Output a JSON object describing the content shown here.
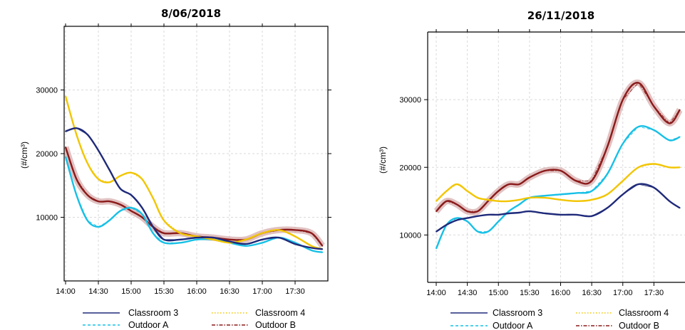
{
  "colors": {
    "Classroom 3": "#1f2a7a",
    "Classroom 4": "#f2c500",
    "Outdoor A": "#17c0e6",
    "Outdoor B": "#8b1a1a"
  },
  "chart_data": [
    {
      "type": "line",
      "title": "8/06/2018",
      "ylabel": "(#/cm³)",
      "xlabel": "",
      "x_ticks": [
        "14:00",
        "14:30",
        "15:00",
        "15:30",
        "16:00",
        "16:30",
        "17:00",
        "17:30"
      ],
      "xlim": [
        "14:00",
        "18:00"
      ],
      "y_ticks": [
        10000,
        20000,
        30000
      ],
      "ylim": [
        0,
        40000
      ],
      "grid": true,
      "legend": "bottom",
      "series": [
        {
          "name": "Classroom 3",
          "style": "solid",
          "x": [
            "14:00",
            "14:10",
            "14:20",
            "14:30",
            "14:40",
            "14:50",
            "15:00",
            "15:10",
            "15:20",
            "15:30",
            "15:45",
            "16:00",
            "16:15",
            "16:30",
            "16:45",
            "17:00",
            "17:15",
            "17:30",
            "17:45",
            "17:55"
          ],
          "values": [
            23500,
            24000,
            23000,
            20500,
            17500,
            14500,
            13500,
            11500,
            8500,
            6500,
            6500,
            6800,
            6800,
            6200,
            5800,
            6500,
            6800,
            5800,
            5200,
            5000
          ]
        },
        {
          "name": "Classroom 4",
          "style": "dotted",
          "x": [
            "14:00",
            "14:10",
            "14:20",
            "14:30",
            "14:40",
            "14:50",
            "15:00",
            "15:10",
            "15:20",
            "15:30",
            "15:45",
            "16:00",
            "16:15",
            "16:30",
            "16:45",
            "17:00",
            "17:15",
            "17:30",
            "17:45",
            "17:55"
          ],
          "values": [
            29000,
            23000,
            18500,
            16000,
            15500,
            16500,
            17000,
            16000,
            13000,
            9500,
            7500,
            7000,
            6500,
            6000,
            6500,
            7500,
            8000,
            7000,
            5500,
            5000
          ]
        },
        {
          "name": "Outdoor A",
          "style": "dashed",
          "x": [
            "14:00",
            "14:10",
            "14:20",
            "14:30",
            "14:40",
            "14:50",
            "15:00",
            "15:10",
            "15:20",
            "15:30",
            "15:45",
            "16:00",
            "16:15",
            "16:30",
            "16:45",
            "17:00",
            "17:15",
            "17:30",
            "17:45",
            "17:55"
          ],
          "values": [
            19500,
            13500,
            9500,
            8500,
            9500,
            11000,
            11500,
            10500,
            7500,
            6000,
            6000,
            6500,
            6500,
            6000,
            5500,
            6000,
            6800,
            6000,
            4800,
            4500
          ]
        },
        {
          "name": "Outdoor B",
          "style": "dashdot",
          "x": [
            "14:00",
            "14:10",
            "14:20",
            "14:30",
            "14:40",
            "14:50",
            "15:00",
            "15:10",
            "15:20",
            "15:30",
            "15:45",
            "16:00",
            "16:15",
            "16:30",
            "16:45",
            "17:00",
            "17:15",
            "17:30",
            "17:45",
            "17:55"
          ],
          "values": [
            21000,
            16000,
            13500,
            12500,
            12500,
            12000,
            11000,
            10000,
            8500,
            7500,
            7500,
            7000,
            6800,
            6500,
            6500,
            7500,
            8000,
            8000,
            7500,
            5500
          ]
        }
      ]
    },
    {
      "type": "line",
      "title": "26/11/2018",
      "ylabel": "(#/cm³)",
      "xlabel": "",
      "x_ticks": [
        "14:00",
        "14:30",
        "15:00",
        "15:30",
        "16:00",
        "16:30",
        "17:00",
        "17:30"
      ],
      "xlim": [
        "14:00",
        "18:00"
      ],
      "y_ticks": [
        10000,
        20000,
        30000
      ],
      "ylim": [
        3000,
        40000
      ],
      "grid": true,
      "legend": "bottom",
      "series": [
        {
          "name": "Classroom 3",
          "style": "solid",
          "x": [
            "14:00",
            "14:10",
            "14:20",
            "14:30",
            "14:40",
            "14:50",
            "15:00",
            "15:10",
            "15:20",
            "15:30",
            "15:45",
            "16:00",
            "16:15",
            "16:30",
            "16:45",
            "17:00",
            "17:15",
            "17:30",
            "17:45",
            "17:55"
          ],
          "values": [
            10500,
            11500,
            12200,
            12500,
            12800,
            13000,
            13000,
            13200,
            13300,
            13500,
            13200,
            13000,
            13000,
            12800,
            14000,
            16000,
            17500,
            17000,
            15000,
            14000
          ]
        },
        {
          "name": "Classroom 4",
          "style": "dotted",
          "x": [
            "14:00",
            "14:10",
            "14:20",
            "14:30",
            "14:40",
            "14:50",
            "15:00",
            "15:10",
            "15:20",
            "15:30",
            "15:45",
            "16:00",
            "16:15",
            "16:30",
            "16:45",
            "17:00",
            "17:15",
            "17:30",
            "17:45",
            "17:55"
          ],
          "values": [
            15000,
            16500,
            17500,
            16500,
            15500,
            15200,
            15000,
            15000,
            15200,
            15500,
            15500,
            15200,
            15000,
            15200,
            16000,
            18000,
            20000,
            20500,
            20000,
            20000
          ]
        },
        {
          "name": "Outdoor A",
          "style": "dashed",
          "x": [
            "14:00",
            "14:10",
            "14:20",
            "14:30",
            "14:40",
            "14:50",
            "15:00",
            "15:10",
            "15:20",
            "15:30",
            "15:45",
            "16:00",
            "16:15",
            "16:30",
            "16:45",
            "17:00",
            "17:15",
            "17:30",
            "17:45",
            "17:55"
          ],
          "values": [
            8000,
            11500,
            12500,
            12000,
            10500,
            10500,
            12000,
            13500,
            14500,
            15500,
            15800,
            16000,
            16200,
            16500,
            19000,
            23500,
            26000,
            25500,
            24000,
            24500
          ]
        },
        {
          "name": "Outdoor B",
          "style": "dashdot",
          "x": [
            "14:00",
            "14:10",
            "14:20",
            "14:30",
            "14:40",
            "14:50",
            "15:00",
            "15:10",
            "15:20",
            "15:30",
            "15:45",
            "16:00",
            "16:15",
            "16:30",
            "16:45",
            "17:00",
            "17:15",
            "17:30",
            "17:45",
            "17:55"
          ],
          "values": [
            13500,
            15000,
            14500,
            13500,
            13500,
            15000,
            16500,
            17500,
            17500,
            18500,
            19500,
            19500,
            18000,
            18000,
            23000,
            30000,
            32500,
            29000,
            26500,
            28500
          ]
        }
      ]
    }
  ]
}
